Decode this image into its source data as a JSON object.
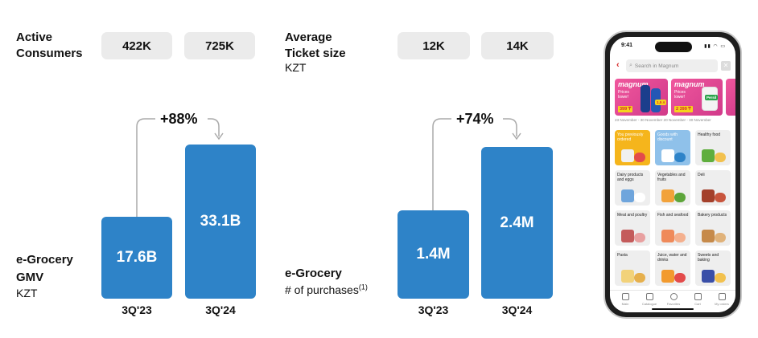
{
  "colors": {
    "bar": "#2e83c8",
    "pill": "#ebebeb",
    "brand_red": "#d62b2b",
    "promo_pink": "#e04a94"
  },
  "left": {
    "consumers_label": [
      "Active",
      "Consumers"
    ],
    "consumers_values": [
      "422K",
      "725K"
    ],
    "metric_label": [
      "e-Grocery",
      "GMV"
    ],
    "metric_unit": "KZT",
    "growth": "+88%"
  },
  "right": {
    "ticket_label": [
      "Average",
      "Ticket size"
    ],
    "ticket_unit": "KZT",
    "ticket_values": [
      "12K",
      "14K"
    ],
    "metric_label": "e-Grocery",
    "metric_sub": "# of purchases",
    "metric_sup": "(1)",
    "growth": "+74%"
  },
  "chart_data": [
    {
      "type": "bar",
      "categories": [
        "3Q'23",
        "3Q'24"
      ],
      "values": [
        17.6,
        33.1
      ],
      "labels": [
        "17.6B",
        "33.1B"
      ],
      "ylabel": "e-Grocery GMV KZT",
      "annotation": "+88%"
    },
    {
      "type": "bar",
      "categories": [
        "3Q'23",
        "3Q'24"
      ],
      "values": [
        1.4,
        2.4
      ],
      "labels": [
        "1.4M",
        "2.4M"
      ],
      "ylabel": "e-Grocery # of purchases",
      "annotation": "+74%"
    }
  ],
  "phone": {
    "time": "9:41",
    "search_placeholder": "Search in Magnum",
    "promo_brand": "magnum",
    "promo_sub": [
      "Prices",
      "lower!"
    ],
    "promo_prices": [
      "399 ₸",
      "2 399 ₸"
    ],
    "promo_dates": "23 November - 30 November    20 November - 30 November",
    "tiles": [
      "You previously ordered",
      "Goods with discount",
      "Healthy food",
      "Dairy products and eggs",
      "Vegetables and fruits",
      "Deli",
      "Meat and poultry",
      "Fish and seafood",
      "Bakery products",
      "Pasta",
      "Juice, water and drinks",
      "Sweets and baking"
    ],
    "tabs": [
      "Main",
      "Catalogue",
      "Favorites",
      "Cart",
      "My orders"
    ]
  }
}
